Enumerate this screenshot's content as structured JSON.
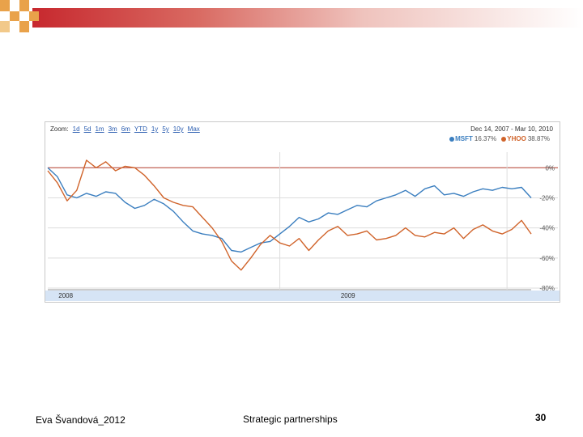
{
  "slide": {
    "author": "Eva Švandová_2012",
    "title": "Strategic partnerships",
    "page_number": "30"
  },
  "colors": {
    "msft": "#3a7ebf",
    "yhoo": "#d0632a",
    "zero_line": "#b23a2a",
    "grid": "#dddddd",
    "axis_band": "#d6e4f5"
  },
  "toolbar": {
    "zoom_label": "Zoom:",
    "zoom_options": [
      "1d",
      "5d",
      "1m",
      "3m",
      "6m",
      "YTD",
      "1y",
      "5y",
      "10y",
      "Max"
    ],
    "date_range": "Dec 14, 2007 - Mar 10, 2010"
  },
  "chart_data": {
    "type": "line",
    "title": "",
    "xlabel": "",
    "ylabel": "",
    "ylim": [
      -80,
      5
    ],
    "y_ticks": [
      0,
      -20,
      -40,
      -60,
      -80
    ],
    "y_tick_labels": [
      "0%",
      "-20%",
      "-40%",
      "-60%",
      "-80%"
    ],
    "x_axis_labels": [
      {
        "label": "2008",
        "x": 0.25
      },
      {
        "label": "2009",
        "x": 0.72
      }
    ],
    "x_range": [
      0,
      100
    ],
    "grid": true,
    "legend_position": "top-right",
    "series": [
      {
        "name": "MSFT",
        "legend_value": "16.37%",
        "x": [
          0,
          2,
          4,
          6,
          8,
          10,
          12,
          14,
          16,
          18,
          20,
          22,
          24,
          26,
          28,
          30,
          32,
          34,
          36,
          38,
          40,
          42,
          44,
          46,
          48,
          50,
          52,
          54,
          56,
          58,
          60,
          62,
          64,
          66,
          68,
          70,
          72,
          74,
          76,
          78,
          80,
          82,
          84,
          86,
          88,
          90,
          92,
          94,
          96,
          98,
          100
        ],
        "values": [
          0,
          -6,
          -18,
          -20,
          -17,
          -19,
          -16,
          -17,
          -23,
          -27,
          -25,
          -21,
          -24,
          -29,
          -36,
          -42,
          -44,
          -45,
          -47,
          -55,
          -56,
          -53,
          -50,
          -49,
          -44,
          -39,
          -33,
          -36,
          -34,
          -30,
          -31,
          -28,
          -25,
          -26,
          -22,
          -20,
          -18,
          -15,
          -19,
          -14,
          -12,
          -18,
          -17,
          -19,
          -16,
          -14,
          -15,
          -13,
          -14,
          -13,
          -20
        ]
      },
      {
        "name": "YHOO",
        "legend_value": "38.87%",
        "x": [
          0,
          2,
          4,
          6,
          8,
          10,
          12,
          14,
          16,
          18,
          20,
          22,
          24,
          26,
          28,
          30,
          32,
          34,
          36,
          38,
          40,
          42,
          44,
          46,
          48,
          50,
          52,
          54,
          56,
          58,
          60,
          62,
          64,
          66,
          68,
          70,
          72,
          74,
          76,
          78,
          80,
          82,
          84,
          86,
          88,
          90,
          92,
          94,
          96,
          98,
          100
        ],
        "values": [
          -2,
          -10,
          -22,
          -15,
          5,
          0,
          4,
          -2,
          1,
          0,
          -5,
          -12,
          -20,
          -23,
          -25,
          -26,
          -33,
          -40,
          -49,
          -62,
          -68,
          -60,
          -51,
          -45,
          -50,
          -52,
          -47,
          -55,
          -48,
          -42,
          -39,
          -45,
          -44,
          -42,
          -48,
          -47,
          -45,
          -40,
          -45,
          -46,
          -43,
          -44,
          -40,
          -47,
          -41,
          -38,
          -42,
          -44,
          -41,
          -35,
          -44
        ]
      }
    ]
  }
}
